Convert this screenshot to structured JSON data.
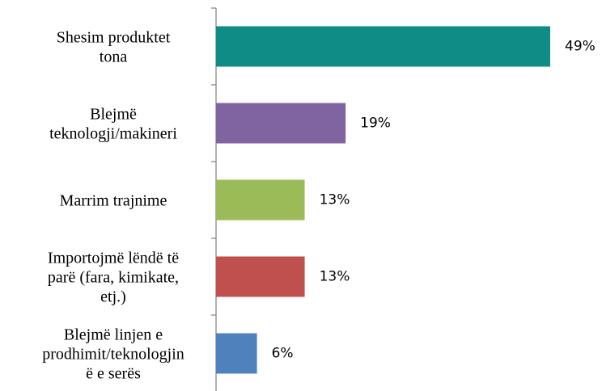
{
  "chart_data": {
    "type": "bar",
    "orientation": "horizontal",
    "categories": [
      "Shesim produktet\ntona",
      "Blejmë\nteknologji/makineri",
      "Marrim trajnime",
      "Importojmë lëndë të\nparë (fara, kimikate,\netj.)",
      "Blejmë linjen e\nprodhimit/teknologjin\në e serës"
    ],
    "values": [
      49,
      19,
      13,
      13,
      6
    ],
    "value_labels": [
      "49%",
      "19%",
      "13%",
      "13%",
      "6%"
    ],
    "colors": [
      "#0f8c86",
      "#8064a2",
      "#9bbb59",
      "#c0504d",
      "#4f81bd"
    ]
  }
}
